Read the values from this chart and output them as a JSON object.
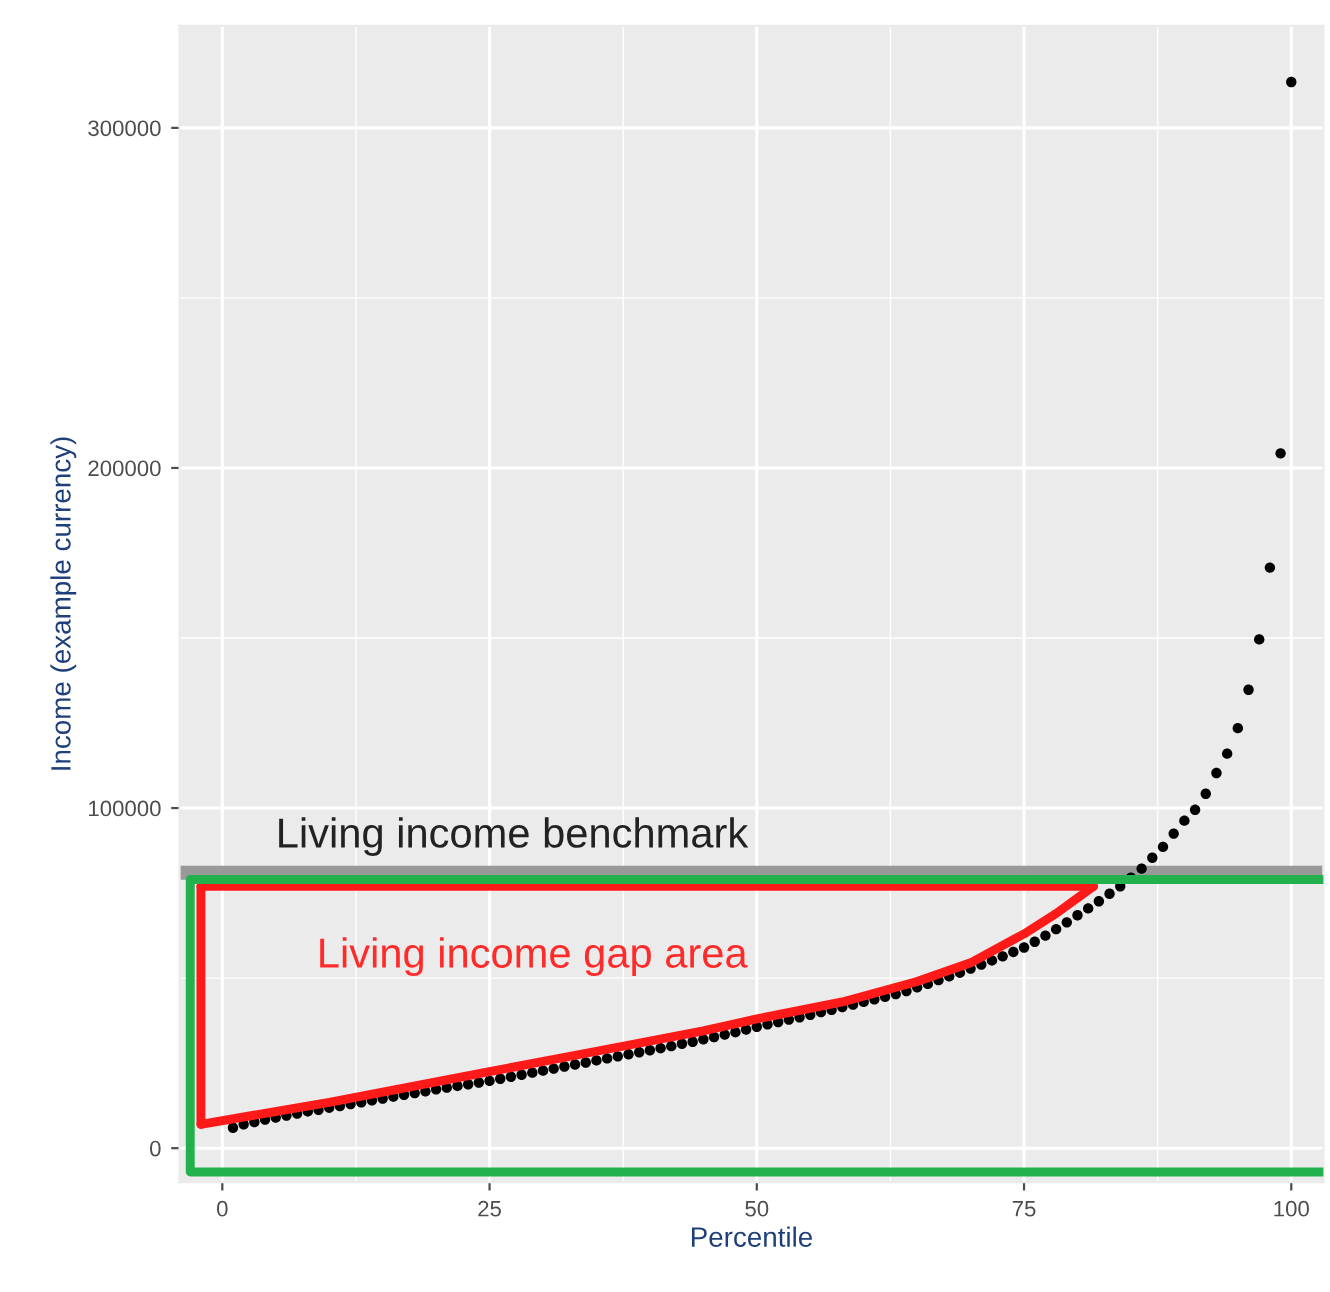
{
  "chart_data": {
    "type": "scatter",
    "xlabel": "Percentile",
    "ylabel": "Income (example currency)",
    "series": [
      {
        "color": "#000000",
        "marker": "circle",
        "x": [
          1,
          2,
          3,
          4,
          5,
          6,
          7,
          8,
          9,
          10,
          11,
          12,
          13,
          14,
          15,
          16,
          17,
          18,
          19,
          20,
          21,
          22,
          23,
          24,
          25,
          26,
          27,
          28,
          29,
          30,
          31,
          32,
          33,
          34,
          35,
          36,
          37,
          38,
          39,
          40,
          41,
          42,
          43,
          44,
          45,
          46,
          47,
          48,
          49,
          50,
          51,
          52,
          53,
          54,
          55,
          56,
          57,
          58,
          59,
          60,
          61,
          62,
          63,
          64,
          65,
          66,
          67,
          68,
          69,
          70,
          71,
          72,
          73,
          74,
          75,
          76,
          77,
          78,
          79,
          80,
          81,
          82,
          83,
          84,
          85,
          86,
          87,
          88,
          89,
          90,
          91,
          92,
          93,
          94,
          95,
          96,
          97,
          98,
          99,
          100
        ],
        "values": [
          6000,
          7000,
          7700,
          8400,
          9000,
          9600,
          10200,
          10800,
          11300,
          11900,
          12400,
          13000,
          13500,
          14100,
          14600,
          15200,
          15700,
          16200,
          16700,
          17300,
          17800,
          18300,
          18800,
          19300,
          19800,
          20400,
          21000,
          21600,
          22200,
          22800,
          23400,
          24000,
          24600,
          25200,
          25800,
          26400,
          27000,
          27600,
          28200,
          28800,
          29400,
          30000,
          30700,
          31300,
          32000,
          32700,
          33400,
          34100,
          34900,
          35700,
          36400,
          37100,
          37800,
          38500,
          39200,
          40000,
          40700,
          41500,
          42200,
          43000,
          43800,
          44500,
          45300,
          46200,
          47300,
          48300,
          49400,
          50500,
          51600,
          52800,
          54000,
          55200,
          56400,
          57700,
          59000,
          60700,
          62500,
          64400,
          66400,
          68500,
          70500,
          72600,
          74800,
          77000,
          79500,
          82200,
          85400,
          88600,
          92500,
          96300,
          99500,
          104200,
          110300,
          116000,
          123500,
          134800,
          149600,
          170700,
          204300,
          313500
        ]
      },
      {
        "type": "line",
        "color": "#ff1a1a",
        "x": [
          -2,
          10,
          20,
          25,
          35,
          45,
          50,
          58,
          65,
          70,
          75,
          78,
          81.5
        ],
        "values": [
          7000,
          13500,
          19500,
          22500,
          28500,
          34500,
          38000,
          43000,
          49000,
          54500,
          63000,
          69000,
          77000
        ]
      },
      {
        "type": "line",
        "color": "#ff1a1a",
        "x": [
          -2,
          81.5
        ],
        "values": [
          77000,
          77000
        ]
      },
      {
        "type": "line",
        "color": "#ff1a1a",
        "x": [
          -2,
          -2
        ],
        "values": [
          7000,
          77000
        ]
      },
      {
        "type": "line",
        "color": "#22b14c",
        "x": [
          103,
          -3,
          -3,
          103
        ],
        "values": [
          79000,
          79000,
          -7000,
          -7000
        ]
      }
    ],
    "xlim": [
      -4,
      103
    ],
    "ylim": [
      -10000,
      330000
    ],
    "xticks": [
      0,
      25,
      50,
      75,
      100
    ],
    "yticks": [
      0,
      100000,
      200000,
      300000
    ],
    "grid": true,
    "ref_lines": [
      {
        "axis": "y",
        "value": 81000,
        "label": "Living income benchmark",
        "color": "#999999"
      }
    ],
    "annotations": [
      "Living income gap area"
    ]
  }
}
